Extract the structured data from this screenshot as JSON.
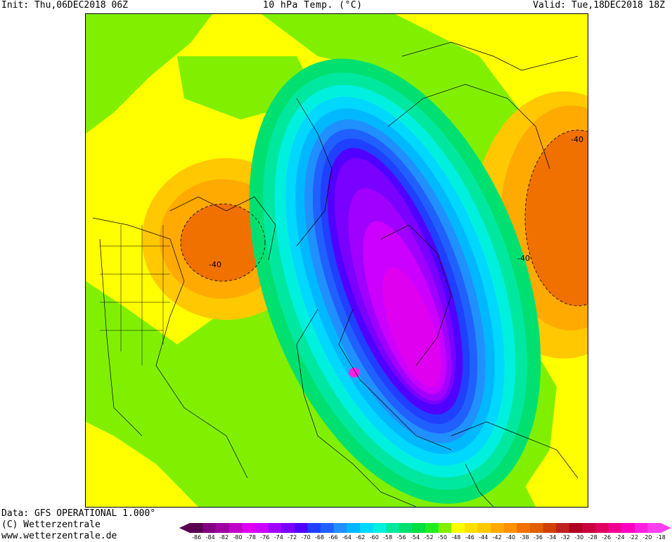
{
  "header": {
    "init": "Init: Thu,06DEC2018 06Z",
    "title": "10 hPa Temp. (°C)",
    "valid": "Valid: Tue,18DEC2018 18Z"
  },
  "footer": {
    "data_line": "Data: GFS OPERATIONAL 1.000°",
    "copyright": "(C) Wetterzentrale",
    "website": "www.wetterzentrale.de"
  },
  "map": {
    "contour_labels": [
      "-40",
      "-40",
      "-40"
    ]
  },
  "legend": {
    "labels": [
      "-86",
      "-84",
      "-82",
      "-80",
      "-78",
      "-76",
      "-74",
      "-72",
      "-70",
      "-68",
      "-66",
      "-64",
      "-62",
      "-60",
      "-58",
      "-56",
      "-54",
      "-52",
      "-50",
      "-48",
      "-46",
      "-44",
      "-42",
      "-40",
      "-38",
      "-36",
      "-34",
      "-32",
      "-30",
      "-28",
      "-26",
      "-24",
      "-22",
      "-20",
      "-18"
    ],
    "colors": [
      "#5a0050",
      "#800080",
      "#a000a0",
      "#c000c8",
      "#e000f0",
      "#cc00ff",
      "#a000ff",
      "#7a00ff",
      "#5000ff",
      "#2040ff",
      "#2060ff",
      "#2090ff",
      "#00b8ff",
      "#00d8ff",
      "#00f0e0",
      "#00e8a0",
      "#00e070",
      "#00e040",
      "#20ee20",
      "#80f000",
      "#ffff00",
      "#ffe000",
      "#ffc800",
      "#ffaa00",
      "#ff9000",
      "#f07000",
      "#e06000",
      "#d04000",
      "#c02020",
      "#b00020",
      "#c80040",
      "#e00060",
      "#f00090",
      "#ff00c0",
      "#ff20e0",
      "#ff40f0"
    ]
  }
}
